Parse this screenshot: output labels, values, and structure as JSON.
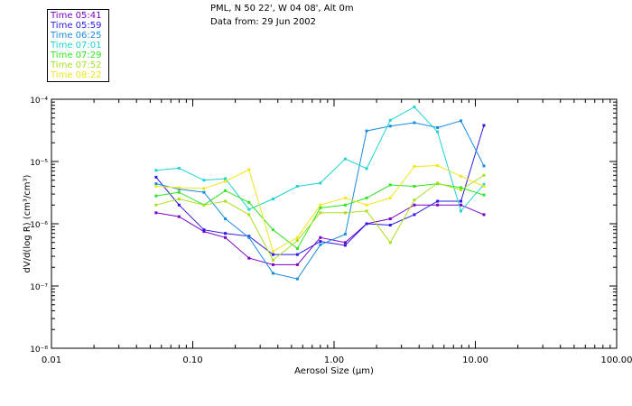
{
  "header": {
    "line1": "PML, N 50 22', W 04 08', Alt 0m",
    "line2": "Data from: 29 Jun 2002"
  },
  "chart_data": {
    "type": "line",
    "xscale": "log",
    "yscale": "log",
    "xlim": [
      0.01,
      100
    ],
    "ylim": [
      1e-08,
      0.0001
    ],
    "xlabel": "Aerosol Size (µm)",
    "ylabel": "dV/d(log R) (cm³/cm³)",
    "xticks": [
      {
        "value": 0.01,
        "label": "0.01"
      },
      {
        "value": 0.1,
        "label": "0.10"
      },
      {
        "value": 1,
        "label": "1.00"
      },
      {
        "value": 10,
        "label": "10.00"
      },
      {
        "value": 100,
        "label": "100.00"
      }
    ],
    "yticks": [
      {
        "value": 1e-08,
        "label": "10⁻⁸"
      },
      {
        "value": 1e-07,
        "label": "10⁻⁷"
      },
      {
        "value": 1e-06,
        "label": "10⁻⁶"
      },
      {
        "value": 1e-05,
        "label": "10⁻⁵"
      },
      {
        "value": 0.0001,
        "label": "10⁻⁴"
      }
    ],
    "x": [
      0.055,
      0.08,
      0.12,
      0.17,
      0.25,
      0.37,
      0.55,
      0.8,
      1.2,
      1.7,
      2.5,
      3.7,
      5.4,
      7.9,
      11.5
    ],
    "series": [
      {
        "name": "Time 05:41",
        "color": "#7b00c8",
        "values": [
          1.5e-06,
          1.3e-06,
          7.5e-07,
          6e-07,
          2.8e-07,
          2.2e-07,
          2.2e-07,
          6e-07,
          5e-07,
          1e-06,
          1.2e-06,
          2e-06,
          2e-06,
          2e-06,
          1.4e-06
        ]
      },
      {
        "name": "Time 05:59",
        "color": "#2c1ae0",
        "values": [
          5.6e-06,
          2e-06,
          8e-07,
          7e-07,
          6.3e-07,
          3.2e-07,
          3.2e-07,
          5.2e-07,
          4.5e-07,
          1e-06,
          9.5e-07,
          1.4e-06,
          2.3e-06,
          2.3e-06,
          3.8e-05
        ]
      },
      {
        "name": "Time 06:25",
        "color": "#1a8ce0",
        "values": [
          4.4e-06,
          3.6e-06,
          3.2e-06,
          1.2e-06,
          6e-07,
          1.6e-07,
          1.3e-07,
          4.6e-07,
          6.8e-07,
          3.1e-05,
          3.7e-05,
          4.2e-05,
          3.5e-05,
          4.5e-05,
          8.5e-06
        ]
      },
      {
        "name": "Time 07:01",
        "color": "#20d2d2",
        "values": [
          7.2e-06,
          7.8e-06,
          5e-06,
          5.3e-06,
          1.7e-06,
          2.5e-06,
          4e-06,
          4.5e-06,
          1.1e-05,
          7.7e-06,
          4.6e-05,
          7.5e-05,
          3e-05,
          1.6e-06,
          4.3e-06
        ]
      },
      {
        "name": "Time 07:29",
        "color": "#2fe620",
        "values": [
          2.8e-06,
          3.2e-06,
          2e-06,
          3.4e-06,
          2.2e-06,
          8e-07,
          4e-07,
          1.8e-06,
          2e-06,
          2.6e-06,
          4.2e-06,
          4e-06,
          4.4e-06,
          3.8e-06,
          2.9e-06
        ]
      },
      {
        "name": "Time 07:52",
        "color": "#a8e020",
        "values": [
          2e-06,
          2.5e-06,
          2e-06,
          2.3e-06,
          1.4e-06,
          2.6e-07,
          5.4e-07,
          1.5e-06,
          1.5e-06,
          1.6e-06,
          5e-07,
          2.4e-06,
          4.5e-06,
          3.5e-06,
          6e-06
        ]
      },
      {
        "name": "Time 08:22",
        "color": "#f0e61a",
        "values": [
          4e-06,
          3.8e-06,
          3.7e-06,
          4.8e-06,
          7.4e-06,
          3.6e-07,
          6e-07,
          2e-06,
          2.6e-06,
          2e-06,
          2.6e-06,
          8.3e-06,
          8.6e-06,
          5.8e-06,
          4e-06
        ]
      }
    ]
  }
}
